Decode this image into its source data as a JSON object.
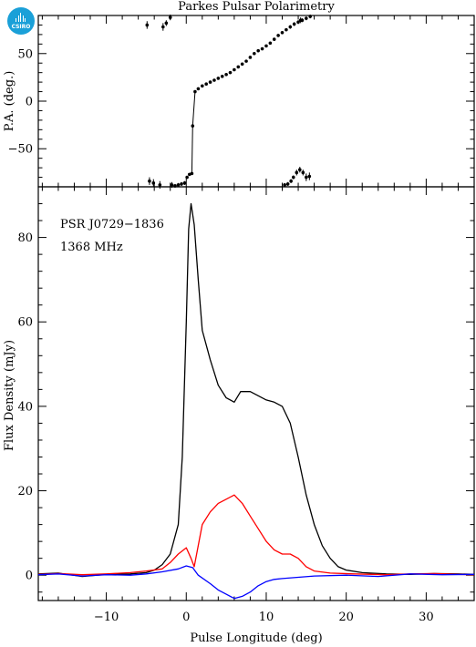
{
  "header": {
    "title": "Parkes Pulsar Polarimetry",
    "logo_text": "CSIRO"
  },
  "chart_data": [
    {
      "type": "scatter",
      "panel": "position-angle",
      "ylabel": "P.A. (deg.)",
      "xlim": [
        -18.5,
        36
      ],
      "ylim": [
        -90,
        90
      ],
      "yticks": [
        -50,
        0,
        50
      ],
      "xticks": [
        -10,
        0,
        10,
        20,
        30
      ],
      "grid": false,
      "points": [
        {
          "x": -4.9,
          "y": 80,
          "err": 4
        },
        {
          "x": -4.6,
          "y": -84,
          "err": 4
        },
        {
          "x": -4.1,
          "y": -86,
          "err": 4
        },
        {
          "x": -3.3,
          "y": -88,
          "err": 4
        },
        {
          "x": -2.9,
          "y": 78,
          "err": 4
        },
        {
          "x": -2.5,
          "y": 82,
          "err": 3
        },
        {
          "x": -2.0,
          "y": 88,
          "err": 3
        },
        {
          "x": -1.8,
          "y": -88,
          "err": 3
        },
        {
          "x": -1.4,
          "y": -89,
          "err": 2
        },
        {
          "x": -1.0,
          "y": -88,
          "err": 2
        },
        {
          "x": -0.6,
          "y": -87,
          "err": 2
        },
        {
          "x": -0.2,
          "y": -86,
          "err": 2
        },
        {
          "x": 0.1,
          "y": -80,
          "err": 1.5
        },
        {
          "x": 0.4,
          "y": -77,
          "err": 1.5
        },
        {
          "x": 0.7,
          "y": -76,
          "err": 1.5
        },
        {
          "x": 0.8,
          "y": -26,
          "err": 2
        },
        {
          "x": 1.1,
          "y": 10,
          "err": 1.5
        },
        {
          "x": 1.5,
          "y": 13,
          "err": 1
        },
        {
          "x": 2.0,
          "y": 16,
          "err": 1
        },
        {
          "x": 2.5,
          "y": 18,
          "err": 1
        },
        {
          "x": 3.0,
          "y": 20,
          "err": 1
        },
        {
          "x": 3.5,
          "y": 22,
          "err": 1
        },
        {
          "x": 4.0,
          "y": 24,
          "err": 1
        },
        {
          "x": 4.5,
          "y": 26,
          "err": 1
        },
        {
          "x": 5.0,
          "y": 28,
          "err": 1
        },
        {
          "x": 5.5,
          "y": 30,
          "err": 1
        },
        {
          "x": 6.0,
          "y": 33,
          "err": 1
        },
        {
          "x": 6.5,
          "y": 36,
          "err": 1
        },
        {
          "x": 7.0,
          "y": 39,
          "err": 1
        },
        {
          "x": 7.5,
          "y": 42,
          "err": 1
        },
        {
          "x": 8.0,
          "y": 46,
          "err": 1
        },
        {
          "x": 8.5,
          "y": 50,
          "err": 1
        },
        {
          "x": 9.0,
          "y": 53,
          "err": 1
        },
        {
          "x": 9.5,
          "y": 55,
          "err": 1
        },
        {
          "x": 10.0,
          "y": 58,
          "err": 1
        },
        {
          "x": 10.5,
          "y": 61,
          "err": 1.5
        },
        {
          "x": 11.0,
          "y": 65,
          "err": 1.5
        },
        {
          "x": 11.5,
          "y": 69,
          "err": 1.5
        },
        {
          "x": 12.0,
          "y": 72,
          "err": 1.5
        },
        {
          "x": 12.5,
          "y": 75,
          "err": 1.5
        },
        {
          "x": 13.0,
          "y": 78,
          "err": 2
        },
        {
          "x": 13.5,
          "y": 81,
          "err": 2
        },
        {
          "x": 14.0,
          "y": 83,
          "err": 2
        },
        {
          "x": 14.5,
          "y": 85,
          "err": 2
        },
        {
          "x": 15.0,
          "y": 87,
          "err": 2
        },
        {
          "x": 15.5,
          "y": 89,
          "err": 2
        },
        {
          "x": 12.3,
          "y": -88,
          "err": 2
        },
        {
          "x": 12.7,
          "y": -87,
          "err": 2
        },
        {
          "x": 13.1,
          "y": -84,
          "err": 2
        },
        {
          "x": 13.4,
          "y": -80,
          "err": 2
        },
        {
          "x": 13.8,
          "y": -75,
          "err": 3
        },
        {
          "x": 14.2,
          "y": -72,
          "err": 3
        },
        {
          "x": 14.6,
          "y": -75,
          "err": 3
        },
        {
          "x": 15.0,
          "y": -80,
          "err": 4
        },
        {
          "x": 15.4,
          "y": -79,
          "err": 4
        },
        {
          "x": 14.3,
          "y": 85,
          "err": 3
        }
      ]
    },
    {
      "type": "line",
      "panel": "profile",
      "xlabel": "Pulse Longitude (deg)",
      "ylabel": "Flux Density (mJy)",
      "xlim": [
        -18.5,
        36
      ],
      "ylim": [
        -6,
        92
      ],
      "xticks": [
        -10,
        0,
        10,
        20,
        30
      ],
      "yticks": [
        0,
        20,
        40,
        60,
        80
      ],
      "grid": false,
      "annotations": [
        "PSR J0729−1836",
        "1368 MHz"
      ],
      "series": [
        {
          "color": "#000000",
          "points": [
            [
              -18.5,
              0.3
            ],
            [
              -16,
              0.5
            ],
            [
              -13,
              -0.3
            ],
            [
              -10,
              0.2
            ],
            [
              -7,
              0.3
            ],
            [
              -5,
              0.6
            ],
            [
              -4,
              1.2
            ],
            [
              -3,
              2.5
            ],
            [
              -2,
              5
            ],
            [
              -1,
              12
            ],
            [
              -0.5,
              28
            ],
            [
              0,
              60
            ],
            [
              0.3,
              82
            ],
            [
              0.6,
              88
            ],
            [
              1,
              83
            ],
            [
              1.5,
              70
            ],
            [
              2,
              58
            ],
            [
              3,
              51
            ],
            [
              4,
              45
            ],
            [
              5,
              42
            ],
            [
              6,
              41
            ],
            [
              6.8,
              43.5
            ],
            [
              8,
              43.5
            ],
            [
              9,
              42.5
            ],
            [
              10,
              41.5
            ],
            [
              11,
              41
            ],
            [
              12,
              40
            ],
            [
              13,
              36
            ],
            [
              14,
              28
            ],
            [
              15,
              19
            ],
            [
              16,
              12
            ],
            [
              17,
              7
            ],
            [
              18,
              4
            ],
            [
              19,
              2
            ],
            [
              20,
              1.2
            ],
            [
              22,
              0.6
            ],
            [
              25,
              0.3
            ],
            [
              28,
              0.2
            ],
            [
              31,
              0.4
            ],
            [
              34,
              0.3
            ],
            [
              36,
              0.2
            ]
          ]
        },
        {
          "color": "#ff0000",
          "points": [
            [
              -18.5,
              0.2
            ],
            [
              -16,
              0.4
            ],
            [
              -13,
              0.1
            ],
            [
              -10,
              0.3
            ],
            [
              -7,
              0.6
            ],
            [
              -5,
              1
            ],
            [
              -3,
              1.5
            ],
            [
              -2,
              3
            ],
            [
              -1,
              5
            ],
            [
              0,
              6.5
            ],
            [
              0.6,
              4
            ],
            [
              1,
              2
            ],
            [
              1.5,
              7
            ],
            [
              2,
              12
            ],
            [
              3,
              15
            ],
            [
              4,
              17
            ],
            [
              5,
              18
            ],
            [
              6,
              19
            ],
            [
              7,
              17
            ],
            [
              8,
              14
            ],
            [
              9,
              11
            ],
            [
              10,
              8
            ],
            [
              11,
              6
            ],
            [
              12,
              5
            ],
            [
              13,
              5
            ],
            [
              14,
              4
            ],
            [
              15,
              2
            ],
            [
              16,
              1
            ],
            [
              18,
              0.5
            ],
            [
              21,
              0.3
            ],
            [
              25,
              0.1
            ],
            [
              28,
              0.3
            ],
            [
              31,
              0.4
            ],
            [
              34,
              0.2
            ],
            [
              36,
              0.1
            ]
          ]
        },
        {
          "color": "#0000ff",
          "points": [
            [
              -18.5,
              0.1
            ],
            [
              -16,
              0.3
            ],
            [
              -13,
              -0.2
            ],
            [
              -10,
              0.1
            ],
            [
              -7,
              0
            ],
            [
              -5,
              0.3
            ],
            [
              -3,
              0.8
            ],
            [
              -1,
              1.5
            ],
            [
              0,
              2.2
            ],
            [
              0.8,
              1.8
            ],
            [
              1.5,
              0
            ],
            [
              3,
              -2
            ],
            [
              4,
              -3.5
            ],
            [
              5,
              -4.5
            ],
            [
              6,
              -5.5
            ],
            [
              7,
              -5
            ],
            [
              8,
              -4
            ],
            [
              9,
              -2.5
            ],
            [
              10,
              -1.5
            ],
            [
              11,
              -1
            ],
            [
              12,
              -0.8
            ],
            [
              14,
              -0.5
            ],
            [
              16,
              -0.2
            ],
            [
              20,
              0
            ],
            [
              24,
              -0.3
            ],
            [
              28,
              0.3
            ],
            [
              32,
              0.1
            ],
            [
              36,
              0.2
            ]
          ]
        }
      ]
    }
  ]
}
